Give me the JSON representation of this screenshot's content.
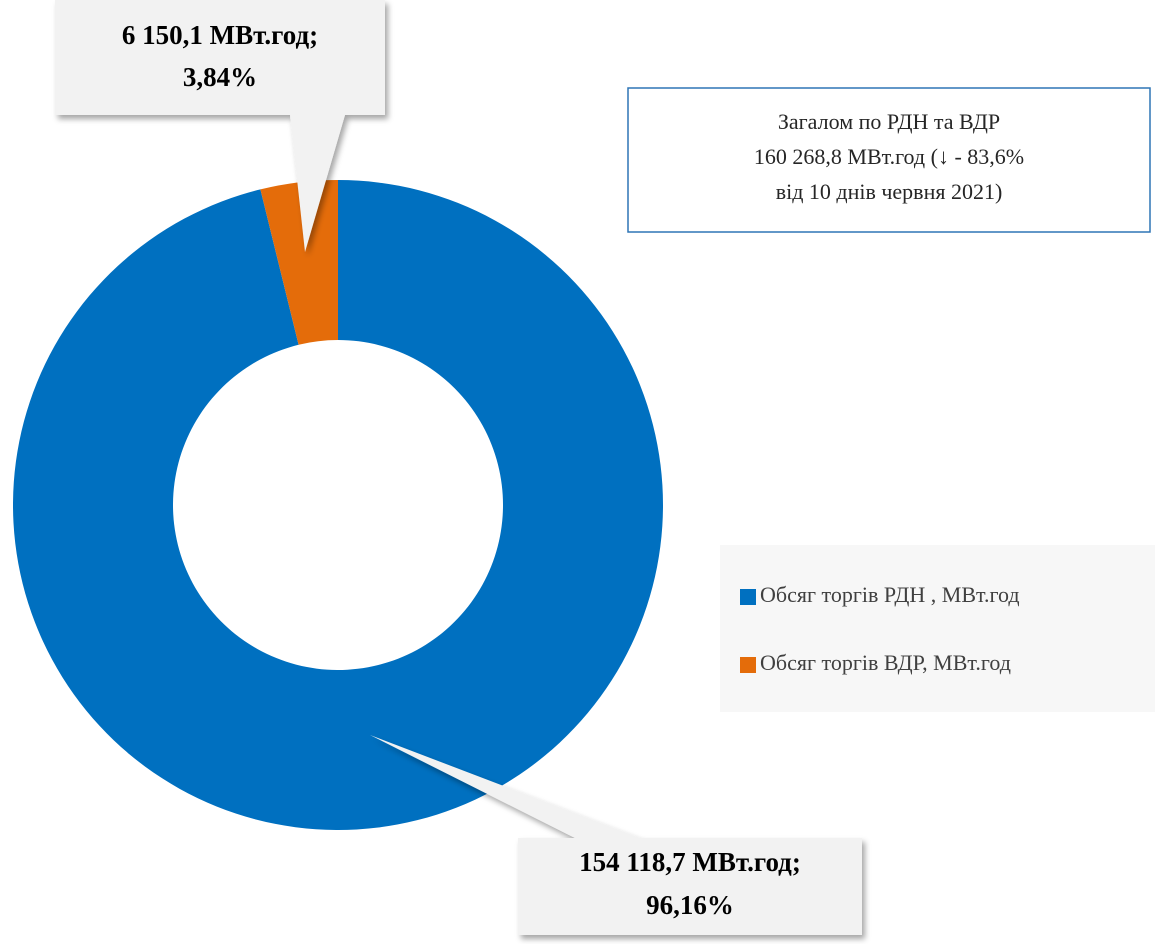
{
  "chart_data": {
    "type": "donut",
    "categories": [
      "Обсяг торгів РДН , МВт.год",
      "Обсяг торгів ВДР, МВт.год"
    ],
    "values": [
      154118.7,
      6150.1
    ],
    "value_labels": [
      [
        "154 118,7 МВт.год;",
        "96,16%"
      ],
      [
        "6 150,1 МВт.год;",
        "3,84%"
      ]
    ],
    "colors": [
      "#0070c0",
      "#e46c0a"
    ],
    "annotation": [
      "Загалом по РДН та ВДР",
      "160 268,8 МВт.год (↓ - 83,6%",
      "від 10 днів червня 2021)"
    ],
    "legend": "right"
  }
}
